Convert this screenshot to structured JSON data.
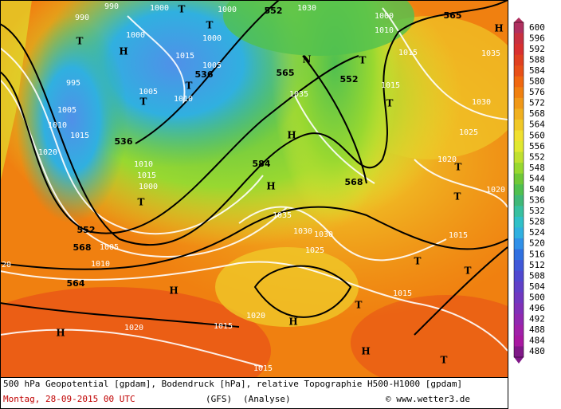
{
  "colorbar": {
    "levels": [
      600,
      596,
      592,
      588,
      584,
      580,
      576,
      572,
      568,
      564,
      560,
      556,
      552,
      548,
      544,
      540,
      536,
      532,
      528,
      524,
      520,
      516,
      512,
      508,
      504,
      500,
      496,
      492,
      488,
      484,
      480
    ],
    "colors": [
      "#b03060",
      "#c83040",
      "#d83030",
      "#e04020",
      "#e85018",
      "#f06810",
      "#f08010",
      "#f09818",
      "#f0b020",
      "#f0c828",
      "#f0e030",
      "#e0e830",
      "#c0e030",
      "#98d830",
      "#70c838",
      "#50c050",
      "#40b878",
      "#38c0a0",
      "#30c0c8",
      "#30b0e0",
      "#3090e8",
      "#3070e0",
      "#4058d8",
      "#5048d0",
      "#6040c8",
      "#7038c0",
      "#8030b8",
      "#9028b0",
      "#a020a8",
      "#a818a0",
      "#801888"
    ]
  },
  "caption": {
    "line1": "500 hPa Geopotential [gpdam], Bodendruck [hPa], relative Topographie H500-H1000 [gpdam]",
    "date": "Montag, 28-09-2015  00 UTC",
    "model": "(GFS)",
    "run": "(Analyse)",
    "credit": "© www.wetter3.de"
  },
  "map_labels": [
    "990",
    "1000",
    "T",
    "1000",
    "552",
    "1030",
    "1000",
    "565",
    "H",
    "990",
    "1000",
    "T",
    "H",
    "1000",
    "1015",
    "1005",
    "536",
    "1010",
    "1015",
    "1035",
    "T",
    "N",
    "T",
    "565",
    "552",
    "995",
    "1005",
    "T",
    "1010",
    "T",
    "1035",
    "1015",
    "T",
    "1030",
    "1005",
    "1010",
    "1015",
    "536",
    "H",
    "1025",
    "1020",
    "584",
    "1020",
    "1010",
    "1015",
    "1000",
    "H",
    "568",
    "T",
    "1020",
    "T",
    "1035",
    "T",
    "552",
    "1030",
    "1030",
    "1015",
    "568",
    "1005",
    "1025",
    "T",
    "T",
    "1010",
    "20",
    "564",
    "H",
    "1015",
    "T",
    "1020",
    "H",
    "1020",
    "1015",
    "H",
    "H",
    "T",
    "1015"
  ]
}
